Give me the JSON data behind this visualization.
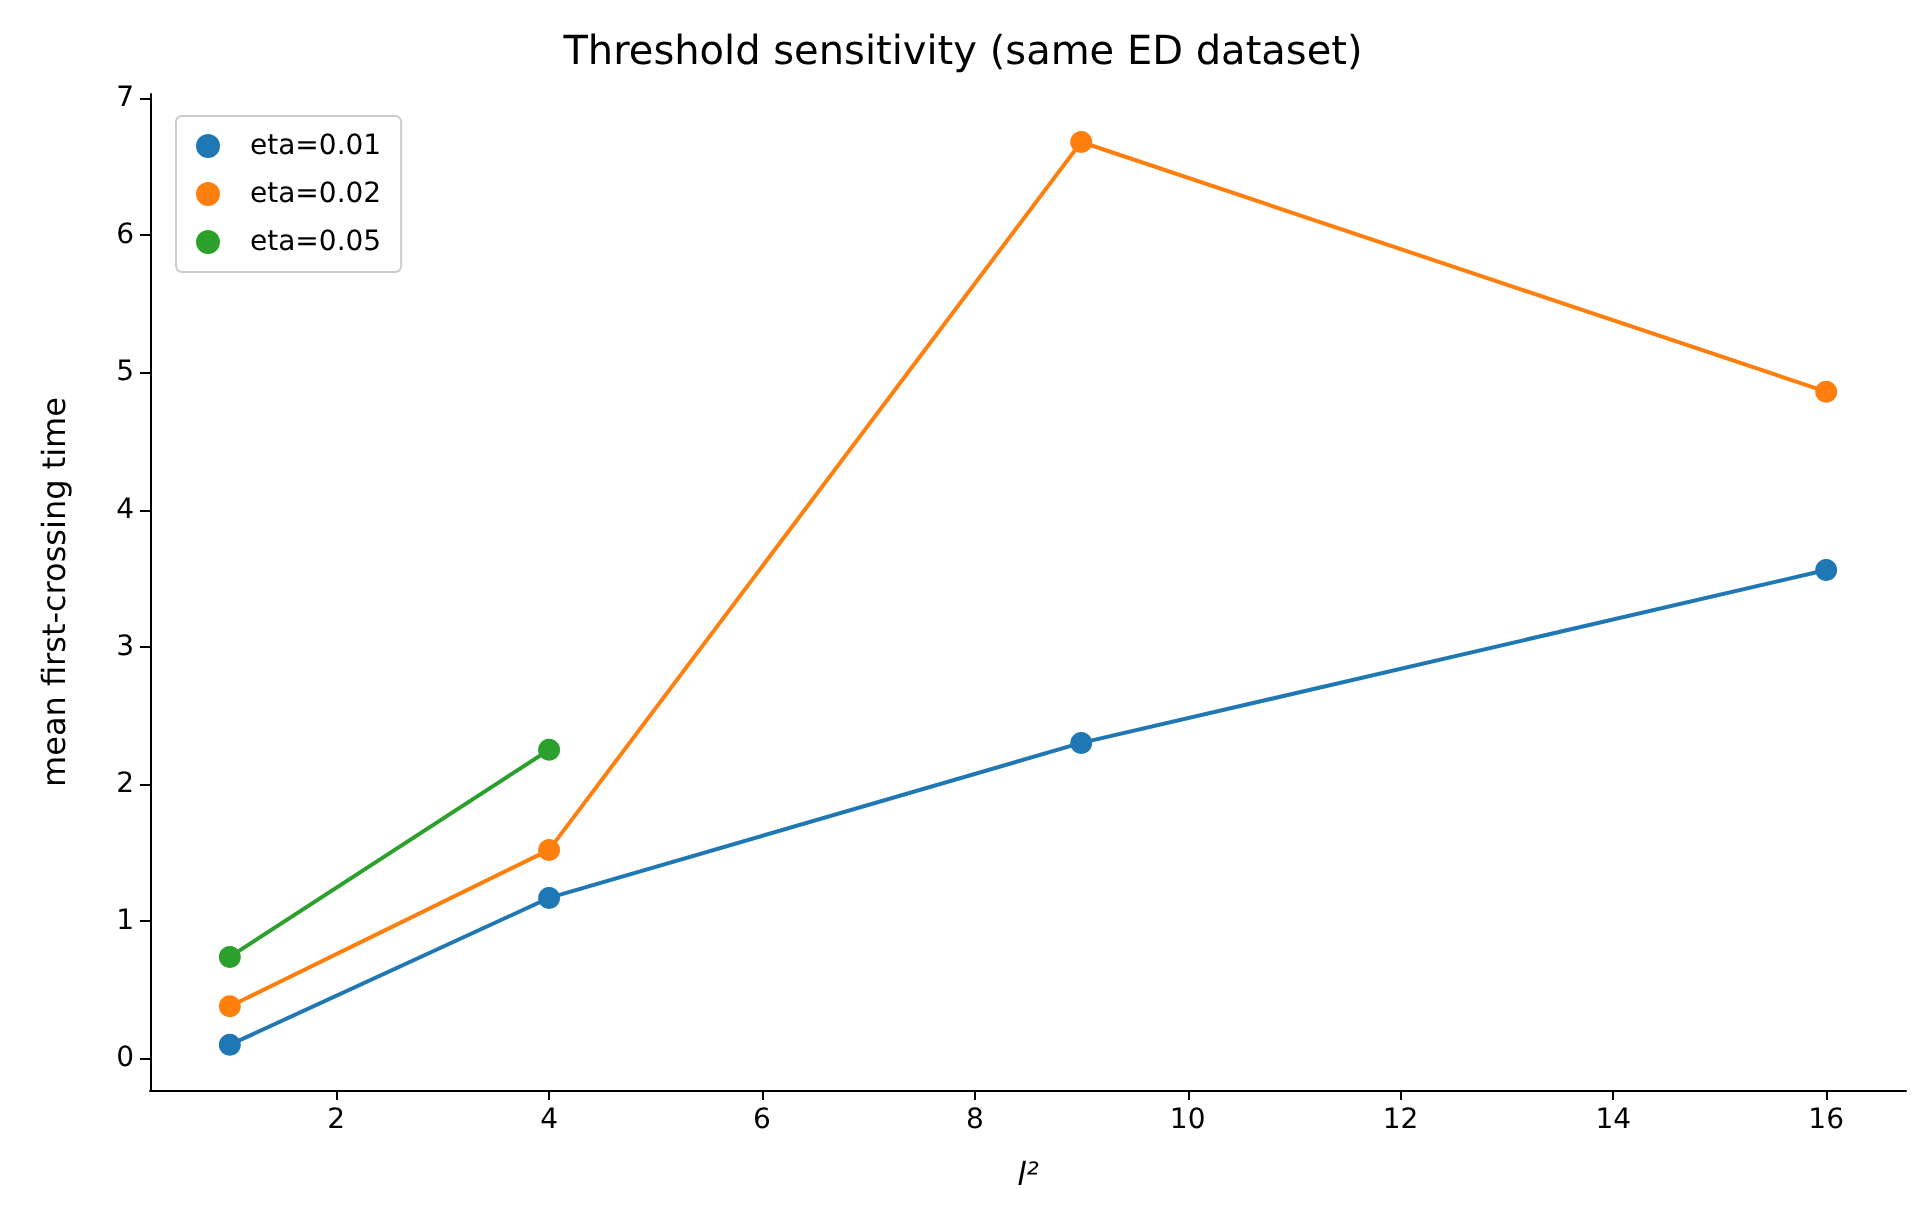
{
  "chart_data": {
    "type": "line",
    "title": "Threshold sensitivity (same ED dataset)",
    "xlabel": "l²",
    "ylabel": "mean first-crossing time",
    "xlim": [
      0.25,
      16.75
    ],
    "xticks": [
      2,
      4,
      6,
      8,
      10,
      12,
      14,
      16
    ],
    "ylim": [
      -0.23,
      7.03
    ],
    "yticks": [
      0,
      1,
      2,
      3,
      4,
      5,
      6,
      7
    ],
    "series": [
      {
        "name": "eta=0.01",
        "color": "#1f77b4",
        "x": [
          1,
          4,
          9,
          16
        ],
        "values": [
          0.1,
          1.17,
          2.3,
          3.56
        ]
      },
      {
        "name": "eta=0.02",
        "color": "#ff7f0e",
        "x": [
          1,
          4,
          9,
          16
        ],
        "values": [
          0.38,
          1.52,
          6.68,
          4.86
        ]
      },
      {
        "name": "eta=0.05",
        "color": "#2ca02c",
        "x": [
          1,
          4
        ],
        "values": [
          0.74,
          2.25
        ]
      }
    ],
    "legend": "top left",
    "marker": "circle",
    "line_style": "solid",
    "grid": false
  }
}
